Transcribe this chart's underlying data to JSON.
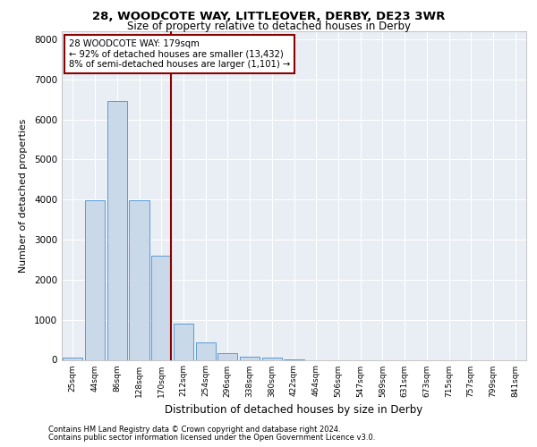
{
  "title_line1": "28, WOODCOTE WAY, LITTLEOVER, DERBY, DE23 3WR",
  "title_line2": "Size of property relative to detached houses in Derby",
  "xlabel": "Distribution of detached houses by size in Derby",
  "ylabel": "Number of detached properties",
  "annotation_line1": "28 WOODCOTE WAY: 179sqm",
  "annotation_line2": "← 92% of detached houses are smaller (13,432)",
  "annotation_line3": "8% of semi-detached houses are larger (1,101) →",
  "bar_categories": [
    "25sqm",
    "44sqm",
    "86sqm",
    "128sqm",
    "170sqm",
    "212sqm",
    "254sqm",
    "296sqm",
    "338sqm",
    "380sqm",
    "422sqm",
    "464sqm",
    "506sqm",
    "547sqm",
    "589sqm",
    "631sqm",
    "673sqm",
    "715sqm",
    "757sqm",
    "799sqm",
    "841sqm"
  ],
  "bar_values": [
    50,
    3980,
    6450,
    3980,
    2600,
    900,
    430,
    160,
    80,
    50,
    10,
    0,
    0,
    0,
    0,
    0,
    0,
    0,
    0,
    0,
    0
  ],
  "bar_color": "#c9d9ea",
  "bar_edge_color": "#5b9bd5",
  "vline_color": "#8b0000",
  "vline_x_pos": 4.43,
  "ylim": [
    0,
    8200
  ],
  "yticks": [
    0,
    1000,
    2000,
    3000,
    4000,
    5000,
    6000,
    7000,
    8000
  ],
  "plot_bg_color": "#e8eef4",
  "grid_color": "#ffffff",
  "footer_line1": "Contains HM Land Registry data © Crown copyright and database right 2024.",
  "footer_line2": "Contains public sector information licensed under the Open Government Licence v3.0."
}
